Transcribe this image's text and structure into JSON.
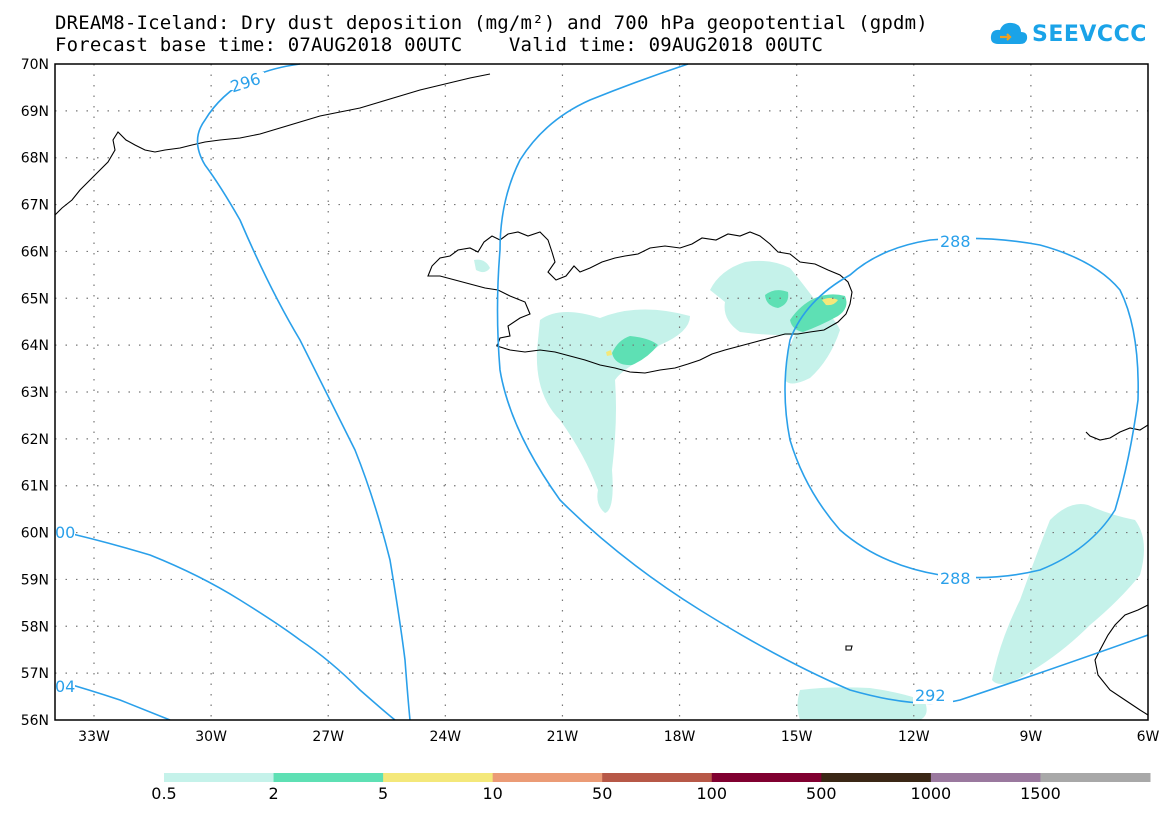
{
  "header": {
    "title_line1": "DREAM8-Iceland: Dry dust deposition (mg/m²) and 700 hPa geopotential (gpdm)",
    "title_line2": "Forecast base time: 07AUG2018 00UTC    Valid time: 09AUG2018 00UTC"
  },
  "logo": {
    "text": "SEEVCCC"
  },
  "map": {
    "lat_labels": [
      "70N",
      "69N",
      "68N",
      "67N",
      "66N",
      "65N",
      "64N",
      "63N",
      "62N",
      "61N",
      "60N",
      "59N",
      "58N",
      "57N",
      "56N"
    ],
    "lon_labels": [
      "33W",
      "30W",
      "27W",
      "24W",
      "21W",
      "18W",
      "15W",
      "12W",
      "9W",
      "6W"
    ],
    "contour_labels": [
      "296",
      "288",
      "288",
      "292",
      "00",
      "04"
    ],
    "colors": {
      "contour": "#2aa0ea",
      "land_outline": "#000000"
    }
  },
  "colorbar": {
    "colors": [
      "#c5f2ea",
      "#5ee0b4",
      "#f4e87a",
      "#eb9b76",
      "#b75847",
      "#800030",
      "#3a2715",
      "#9a789e",
      "#a8a8a8"
    ],
    "labels": [
      "0.5",
      "2",
      "5",
      "10",
      "50",
      "100",
      "500",
      "1000",
      "1500"
    ]
  }
}
